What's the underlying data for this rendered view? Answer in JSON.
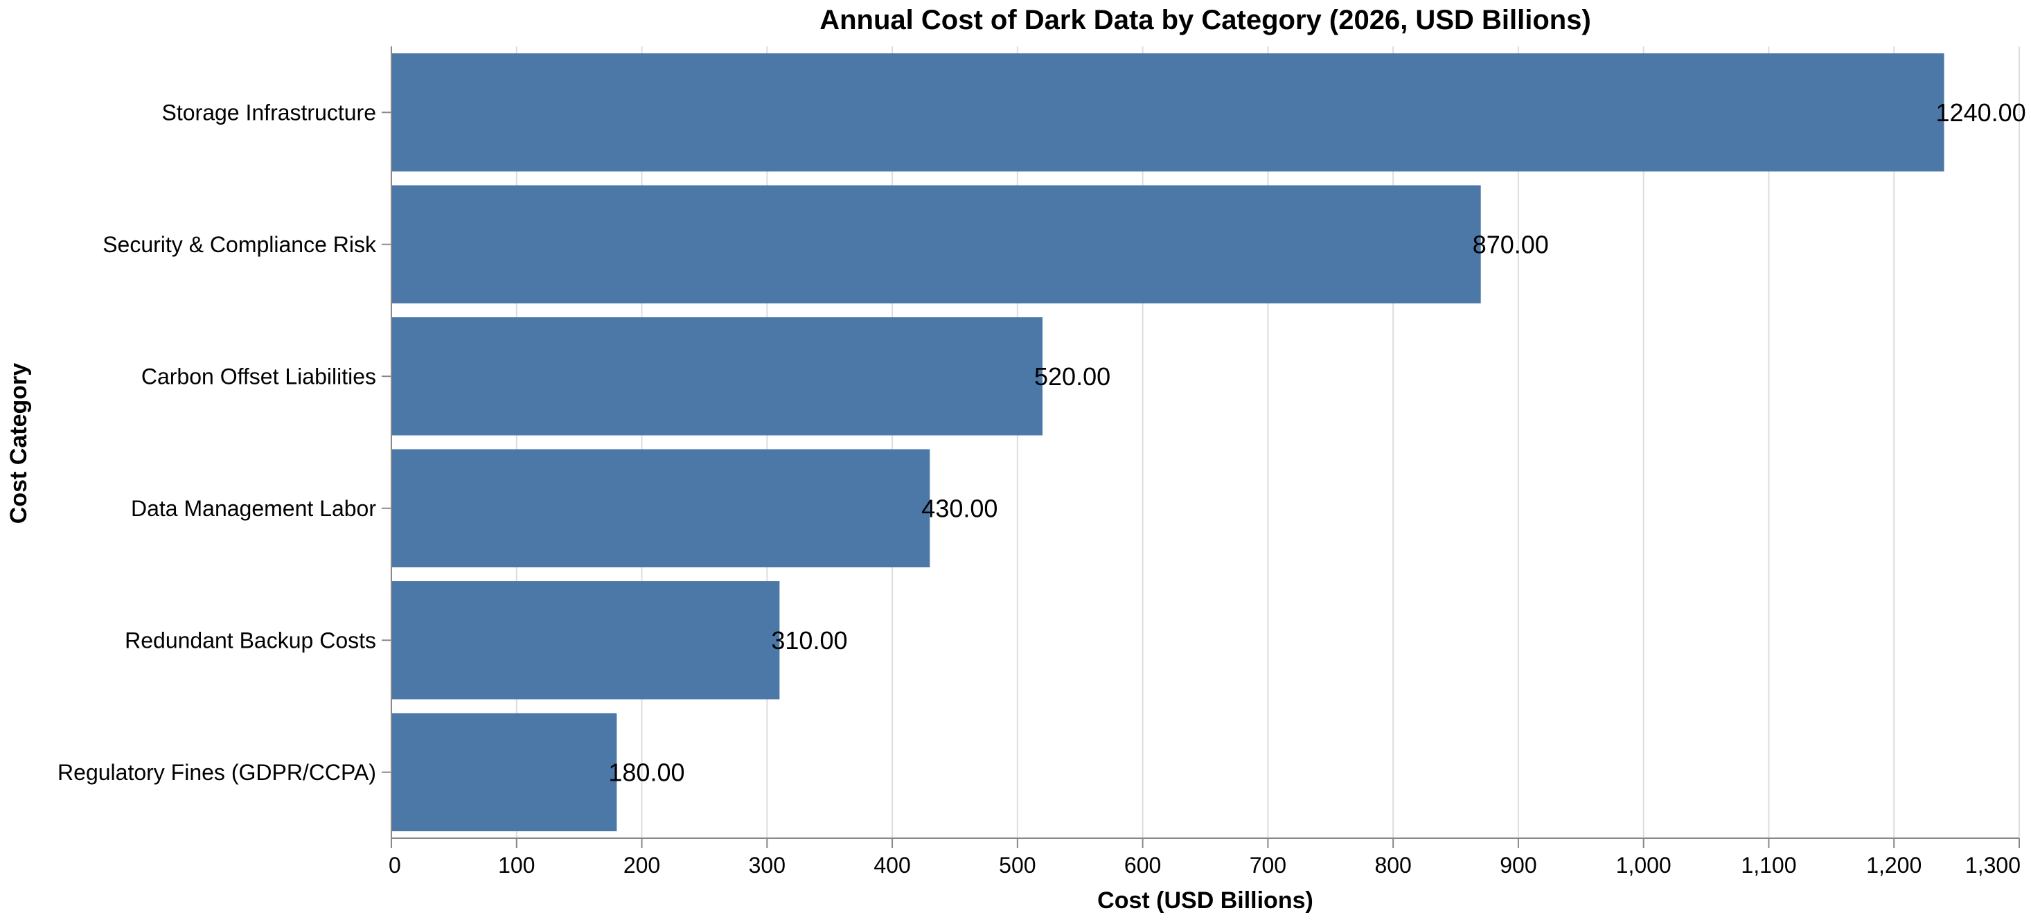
{
  "chart_data": {
    "type": "bar",
    "orientation": "horizontal",
    "title": "Annual Cost of Dark Data by Category (2026, USD Billions)",
    "xlabel": "Cost (USD Billions)",
    "ylabel": "Cost Category",
    "categories": [
      "Storage Infrastructure",
      "Security & Compliance Risk",
      "Carbon Offset Liabilities",
      "Data Management Labor",
      "Redundant Backup Costs",
      "Regulatory Fines (GDPR/CCPA)"
    ],
    "values": [
      1240,
      870,
      520,
      430,
      310,
      180
    ],
    "value_labels": [
      "1240.00",
      "870.00",
      "520.00",
      "430.00",
      "310.00",
      "180.00"
    ],
    "xlim": [
      0,
      1300
    ],
    "xticks": [
      0,
      100,
      200,
      300,
      400,
      500,
      600,
      700,
      800,
      900,
      1000,
      1100,
      1200,
      1300
    ],
    "xtick_labels": [
      "0",
      "100",
      "200",
      "300",
      "400",
      "500",
      "600",
      "700",
      "800",
      "900",
      "1,000",
      "1,100",
      "1,200",
      "1,300"
    ],
    "grid": true,
    "bar_color": "#4c78a8"
  }
}
